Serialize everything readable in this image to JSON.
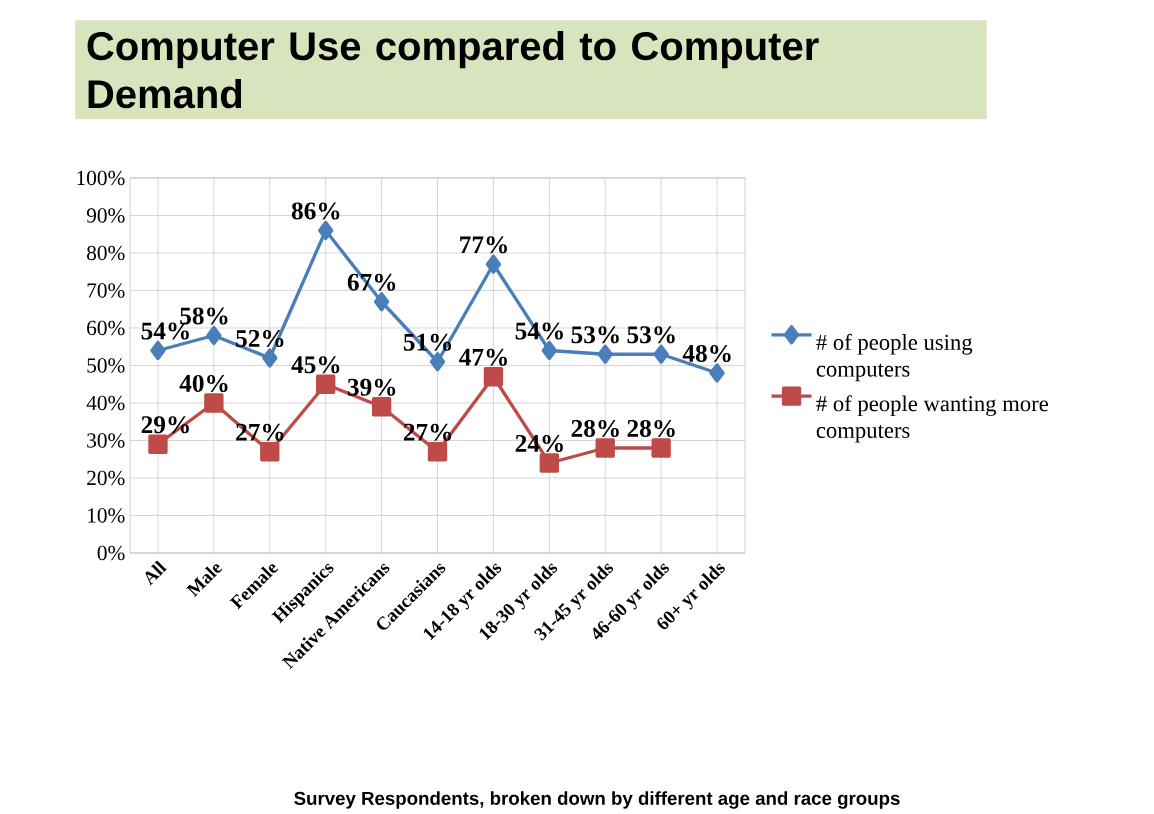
{
  "chart_data": {
    "type": "line",
    "title": "Computer Use compared to Computer Demand",
    "annotations": [
      "Survey Respondents, broken down by different age and race groups"
    ],
    "categories": [
      "All",
      "Male",
      "Female",
      "Hispanics",
      "Native Americans",
      "Caucasians",
      "14-18 yr olds",
      "18-30 yr olds",
      "31-45 yr olds",
      "46-60 yr olds",
      "60+ yr olds"
    ],
    "series": [
      {
        "name": "# of people using computers",
        "color": "#4a7ebb",
        "marker": "diamond",
        "values": [
          54,
          58,
          52,
          86,
          67,
          51,
          77,
          54,
          53,
          53,
          48
        ],
        "value_labels": [
          "54%",
          "58%",
          "52%",
          "86%",
          "67%",
          "51%",
          "77%",
          "54%",
          "53%",
          "53%",
          "48%"
        ]
      },
      {
        "name": "# of people wanting more computers",
        "color": "#be4b48",
        "marker": "square",
        "values": [
          29,
          40,
          27,
          45,
          39,
          27,
          47,
          24,
          28,
          28,
          null
        ],
        "value_labels": [
          "29%",
          "40%",
          "27%",
          "45%",
          "39%",
          "27%",
          "47%",
          "24%",
          "28%",
          "28%",
          null
        ]
      }
    ],
    "ylim": [
      0,
      100
    ],
    "yticks": [
      {
        "value": 0,
        "label": "0%"
      },
      {
        "value": 10,
        "label": "10%"
      },
      {
        "value": 20,
        "label": "20%"
      },
      {
        "value": 30,
        "label": "30%"
      },
      {
        "value": 40,
        "label": "40%"
      },
      {
        "value": 50,
        "label": "50%"
      },
      {
        "value": 60,
        "label": "60%"
      },
      {
        "value": 70,
        "label": "70%"
      },
      {
        "value": 80,
        "label": "80%"
      },
      {
        "value": 90,
        "label": "90%"
      },
      {
        "value": 100,
        "label": "100%"
      }
    ],
    "grid": true,
    "legend": "right",
    "line_style": "solid"
  }
}
